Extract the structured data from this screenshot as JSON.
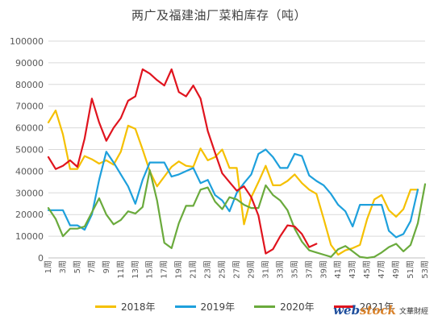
{
  "chart_data": {
    "type": "line",
    "title": "两广及福建油厂菜粕库存",
    "title_unit": "（吨）",
    "ylim": [
      0,
      100000
    ],
    "yticks": [
      0,
      10000,
      20000,
      30000,
      40000,
      50000,
      60000,
      70000,
      80000,
      90000,
      100000
    ],
    "ytick_labels": [
      "0",
      "10000",
      "20000",
      "30000",
      "40000",
      "50000",
      "60000",
      "70000",
      "80000",
      "90000",
      "100000"
    ],
    "xlim": [
      1,
      53
    ],
    "xtick_labels": [
      "1周",
      "3周",
      "5周",
      "7周",
      "9周",
      "11周",
      "13周",
      "15周",
      "17周",
      "19周",
      "21周",
      "23周",
      "25周",
      "27周",
      "29周",
      "31周",
      "33周",
      "35周",
      "37周",
      "39周",
      "41周",
      "43周",
      "45周",
      "47周",
      "49周",
      "51周",
      "53周"
    ],
    "grid": true,
    "legend_position": "bottom",
    "series": [
      {
        "name": "2018年",
        "color": "#f5c000",
        "x": [
          1,
          2,
          3,
          4,
          5,
          6,
          7,
          8,
          9,
          10,
          11,
          12,
          13,
          14,
          15,
          16,
          17,
          18,
          19,
          20,
          21,
          22,
          23,
          24,
          25,
          26,
          27,
          28,
          29,
          30,
          31,
          32,
          33,
          34,
          35,
          36,
          37,
          38,
          39,
          40,
          41,
          42,
          43,
          44,
          45,
          46,
          47,
          48,
          49,
          50,
          51,
          52
        ],
        "y": [
          62500,
          68000,
          57000,
          41000,
          41000,
          47000,
          45500,
          43500,
          45000,
          43000,
          49000,
          61000,
          59500,
          50000,
          40000,
          33000,
          37500,
          42000,
          44500,
          42500,
          42000,
          50500,
          45000,
          46500,
          50000,
          41500,
          41500,
          15500,
          28000,
          35000,
          42500,
          33500,
          33500,
          35500,
          38500,
          34500,
          31500,
          29500,
          18000,
          6000,
          1500,
          3500,
          4500,
          6000,
          18000,
          27000,
          29000,
          22000,
          19000,
          22500,
          31500,
          31500
        ]
      },
      {
        "name": "2019年",
        "color": "#1ea0dc",
        "x": [
          1,
          2,
          3,
          4,
          5,
          6,
          7,
          8,
          9,
          10,
          11,
          12,
          13,
          14,
          15,
          16,
          17,
          18,
          19,
          20,
          21,
          22,
          23,
          24,
          25,
          26,
          27,
          28,
          29,
          30,
          31,
          32,
          33,
          34,
          35,
          36,
          37,
          38,
          39,
          40,
          41,
          42,
          43,
          44,
          45,
          46,
          47,
          48,
          49,
          50,
          51,
          52
        ],
        "y": [
          22000,
          22000,
          22000,
          15000,
          15000,
          13000,
          20000,
          36000,
          49000,
          44000,
          38500,
          33000,
          25000,
          36000,
          44000,
          44000,
          44000,
          37500,
          38500,
          40000,
          41500,
          34500,
          36000,
          29000,
          26500,
          21500,
          30000,
          34500,
          38500,
          48000,
          50000,
          46500,
          41500,
          41500,
          48000,
          47000,
          38000,
          35500,
          33500,
          29500,
          24500,
          21500,
          14500,
          24500,
          24500,
          24500,
          24500,
          12500,
          9500,
          11000,
          17000,
          31500
        ]
      },
      {
        "name": "2020年",
        "color": "#6aaa3c",
        "x": [
          1,
          2,
          3,
          4,
          5,
          6,
          7,
          8,
          9,
          10,
          11,
          12,
          13,
          14,
          15,
          16,
          17,
          18,
          19,
          20,
          21,
          22,
          23,
          24,
          25,
          26,
          27,
          28,
          29,
          30,
          31,
          32,
          33,
          34,
          35,
          36,
          37,
          38,
          39,
          40,
          41,
          42,
          43,
          44,
          45,
          46,
          47,
          48,
          49,
          50,
          51,
          52,
          53
        ],
        "y": [
          23000,
          18000,
          10000,
          13500,
          13500,
          14500,
          21000,
          27500,
          20000,
          15500,
          17500,
          21500,
          20500,
          23500,
          40500,
          26500,
          7000,
          4500,
          16000,
          24000,
          24000,
          31500,
          32500,
          26000,
          22500,
          28000,
          27000,
          24500,
          23000,
          23000,
          33500,
          29000,
          26500,
          22000,
          13500,
          7500,
          3500,
          2500,
          1500,
          500,
          4000,
          5500,
          3000,
          500,
          0,
          500,
          2500,
          5000,
          6500,
          3000,
          6000,
          16000,
          34000
        ]
      },
      {
        "name": "2021年",
        "color": "#e0141e",
        "x": [
          1,
          2,
          3,
          4,
          5,
          6,
          7,
          8,
          9,
          10,
          11,
          12,
          13,
          14,
          15,
          16,
          17,
          18,
          19,
          20,
          21,
          22,
          23,
          24,
          25,
          26,
          27,
          28,
          29,
          30,
          31,
          32,
          33,
          34,
          35,
          36,
          37,
          38
        ],
        "y": [
          46500,
          41000,
          42500,
          45000,
          42000,
          55000,
          73500,
          62500,
          54000,
          60000,
          64500,
          72500,
          74500,
          87000,
          85000,
          82000,
          79500,
          87000,
          76500,
          74500,
          79500,
          73500,
          58500,
          48500,
          39000,
          35000,
          31000,
          33000,
          28000,
          19500,
          2000,
          4000,
          10000,
          15000,
          14500,
          11000,
          5000,
          6500
        ]
      }
    ]
  },
  "branding": {
    "logo_main": "web",
    "logo_accent": "stock",
    "logo_sub": "文華財經"
  }
}
